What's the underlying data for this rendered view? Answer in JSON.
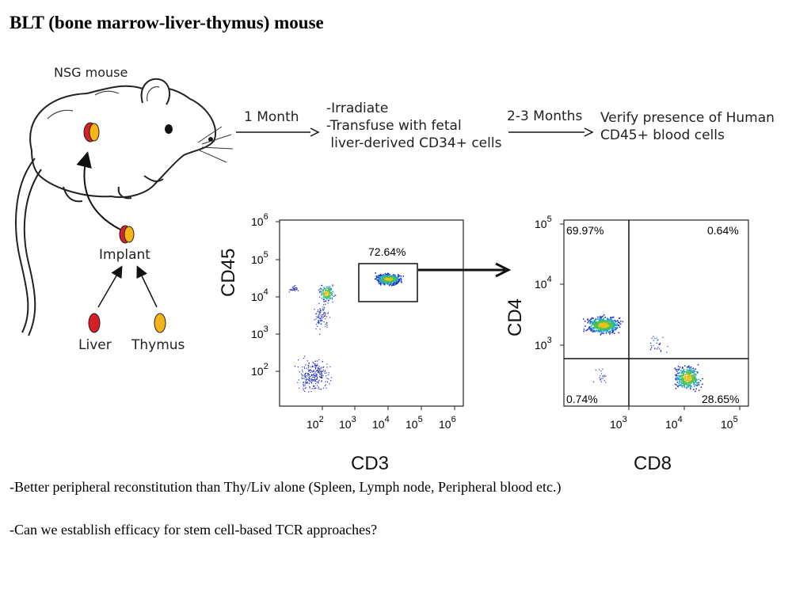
{
  "slide": {
    "title": "BLT (bone marrow-liver-thymus) mouse",
    "notes": [
      "-Better peripheral reconstitution than Thy/Liv alone (Spleen, Lymph node, Peripheral blood etc.)",
      "-Can we establish efficacy for stem cell-based TCR approaches?"
    ]
  },
  "diagram": {
    "mouse_label": "NSG mouse",
    "implant_label": "Implant",
    "liver_label": "Liver",
    "thymus_label": "Thymus",
    "step1_time": "1 Month",
    "step1_lines": [
      "-Irradiate",
      "-Transfuse with fetal",
      " liver-derived CD34+ cells"
    ],
    "step2_time": "2-3 Months",
    "step2_lines": [
      "Verify presence of Human",
      "CD45+ blood cells"
    ],
    "colors": {
      "liver": "#d42027",
      "thymus": "#f5b417"
    }
  },
  "plot1": {
    "xlabel": "CD3",
    "ylabel": "CD45",
    "gate_percent": "72.64%",
    "x_ticks": [
      {
        "base": "10",
        "exp": "2"
      },
      {
        "base": "10",
        "exp": "3"
      },
      {
        "base": "10",
        "exp": "4"
      },
      {
        "base": "10",
        "exp": "5"
      },
      {
        "base": "10",
        "exp": "6"
      }
    ],
    "y_ticks": [
      {
        "base": "10",
        "exp": "6"
      },
      {
        "base": "10",
        "exp": "5"
      },
      {
        "base": "10",
        "exp": "4"
      },
      {
        "base": "10",
        "exp": "3"
      },
      {
        "base": "10",
        "exp": "2"
      }
    ]
  },
  "plot2": {
    "xlabel": "CD8",
    "ylabel": "CD4",
    "quadrants": {
      "upper_left": "69.97%",
      "upper_right": "0.64%",
      "lower_left": "0.74%",
      "lower_right": "28.65%"
    },
    "x_ticks": [
      {
        "base": "10",
        "exp": "3"
      },
      {
        "base": "10",
        "exp": "4"
      },
      {
        "base": "10",
        "exp": "5"
      }
    ],
    "y_ticks": [
      {
        "base": "10",
        "exp": "5"
      },
      {
        "base": "10",
        "exp": "4"
      },
      {
        "base": "10",
        "exp": "3"
      }
    ]
  }
}
